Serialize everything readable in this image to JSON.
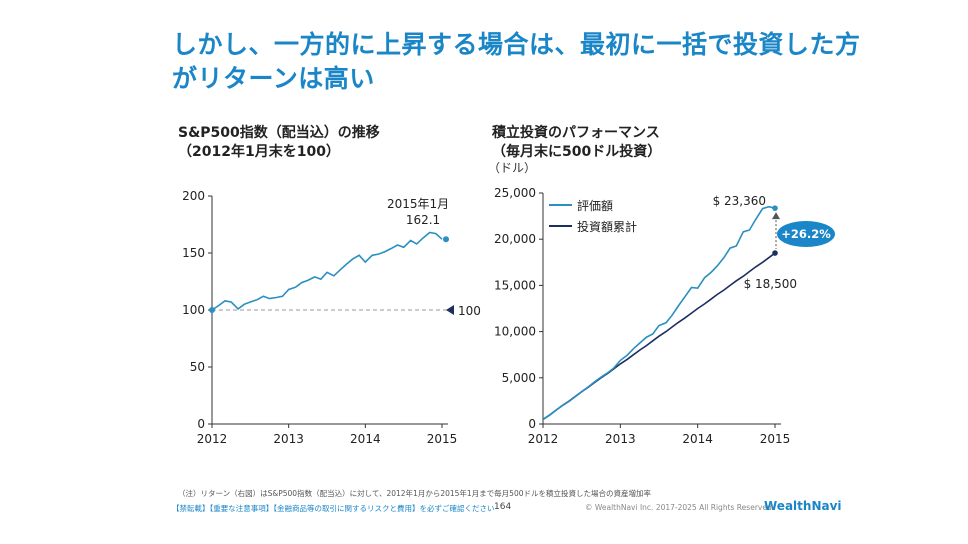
{
  "slide": {
    "title_line1": "しかし、一方的に上昇する場合は、最初に一括で投資した方",
    "title_line2": "がリターンは高い",
    "note": "（注）リターン（右図）はS&P500指数（配当込）に対して、2012年1月から2015年1月まで毎月500ドルを積立投資した場合の資産増加率",
    "disclaimer": "【禁転載】【重要な注意事項】【金融商品等の取引に関するリスクと費用】を必ずご確認ください",
    "page_number": "164",
    "copyright": "© WealthNavi Inc. 2017-2025 All Rights Reserved.",
    "logo": "WealthNavi"
  },
  "chart_data": [
    {
      "type": "line",
      "title": "S&P500指数（配当込）の推移\n（2012年1月末を100）",
      "ylim": [
        0,
        200
      ],
      "yticks": [
        "0",
        "50",
        "100",
        "150",
        "200"
      ],
      "xticks": [
        "2012",
        "2013",
        "2014",
        "2015"
      ],
      "x": [
        2012.08,
        2012.17,
        2012.25,
        2012.33,
        2012.42,
        2012.5,
        2012.58,
        2012.67,
        2012.75,
        2012.83,
        2012.92,
        2013.0,
        2013.08,
        2013.17,
        2013.25,
        2013.33,
        2013.42,
        2013.5,
        2013.58,
        2013.67,
        2013.75,
        2013.83,
        2013.92,
        2014.0,
        2014.08,
        2014.17,
        2014.25,
        2014.33,
        2014.42,
        2014.5,
        2014.58,
        2014.67,
        2014.75,
        2014.83,
        2014.92,
        2015.0,
        2015.08
      ],
      "series": [
        {
          "values": [
            100,
            104,
            108,
            107,
            101,
            105,
            107,
            109,
            112,
            110,
            111,
            112,
            118,
            120,
            124,
            126,
            129,
            127,
            133,
            130,
            135,
            140,
            145,
            148,
            142,
            148,
            149,
            151,
            154,
            157,
            155,
            161,
            158,
            163,
            168,
            167,
            162.1
          ]
        }
      ],
      "reference": {
        "value": 100,
        "label": "100"
      },
      "annotation": {
        "text_line1": "2015年1月",
        "text_line2": "162.1"
      },
      "color": "#2a8fc1"
    },
    {
      "type": "line",
      "title": "積立投資のパフォーマンス\n（毎月末に500ドル投資）",
      "unit": "（ドル）",
      "ylim": [
        0,
        25000
      ],
      "yticks": [
        "0",
        "5,000",
        "10,000",
        "15,000",
        "20,000",
        "25,000"
      ],
      "xticks": [
        "2012",
        "2013",
        "2014",
        "2015"
      ],
      "x": [
        2012.08,
        2012.17,
        2012.25,
        2012.33,
        2012.42,
        2012.5,
        2012.58,
        2012.67,
        2012.75,
        2012.83,
        2012.92,
        2013.0,
        2013.08,
        2013.17,
        2013.25,
        2013.33,
        2013.42,
        2013.5,
        2013.58,
        2013.67,
        2013.75,
        2013.83,
        2013.92,
        2014.0,
        2014.08,
        2014.17,
        2014.25,
        2014.33,
        2014.42,
        2014.5,
        2014.58,
        2014.67,
        2014.75,
        2014.83,
        2014.92,
        2015.0,
        2015.08
      ],
      "series": [
        {
          "name": "評価額",
          "color": "#2a8fc1",
          "values": [
            500,
            1000,
            1500,
            1980,
            2470,
            2980,
            3500,
            4050,
            4580,
            5060,
            5560,
            6090,
            6880,
            7460,
            8150,
            8760,
            9400,
            9740,
            10660,
            10950,
            11780,
            12770,
            13830,
            14770,
            14700,
            15830,
            16390,
            17080,
            18020,
            19040,
            19260,
            20800,
            21000,
            22140,
            23310,
            23520,
            23360
          ]
        },
        {
          "name": "投資額累計",
          "color": "#1c2f5e",
          "values": [
            500,
            1000,
            1500,
            2000,
            2500,
            3000,
            3500,
            4000,
            4500,
            5000,
            5500,
            6000,
            6500,
            7000,
            7500,
            8000,
            8500,
            9000,
            9500,
            10000,
            10500,
            11000,
            11500,
            12000,
            12500,
            13000,
            13500,
            14000,
            14500,
            15000,
            15500,
            16000,
            16500,
            17000,
            17500,
            18000,
            18500
          ]
        }
      ],
      "labels": {
        "final_value": "$ 23,360",
        "final_invested": "$ 18,500",
        "return": "+26.2%"
      }
    }
  ]
}
